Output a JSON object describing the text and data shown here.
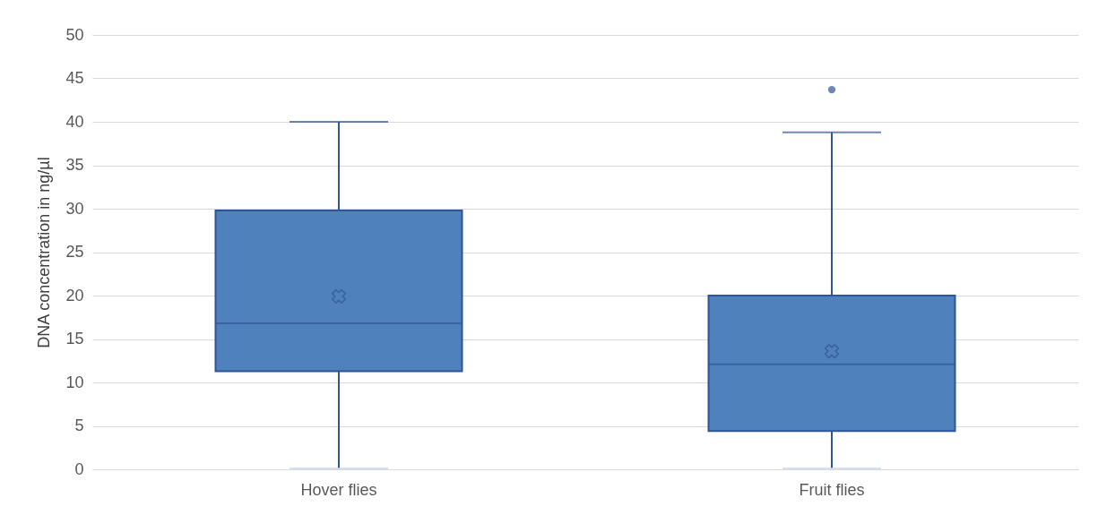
{
  "chart_data": {
    "type": "box",
    "ylabel": "DNA concentration in ng/µl",
    "categories": [
      "Hover flies",
      "Fruit flies"
    ],
    "color": "#4f81bd",
    "boxes": [
      {
        "low": 0.1,
        "q1": 11.3,
        "median": 16.8,
        "q3": 29.8,
        "high": 40,
        "mean": 19.9
      },
      {
        "low": 0.1,
        "q1": 4.4,
        "median": 12.1,
        "q3": 20,
        "high": 38.8,
        "mean": 13.6,
        "outliers": [
          43.7
        ]
      }
    ],
    "ylim": [
      0,
      50
    ],
    "yticks": [
      0,
      5,
      10,
      15,
      20,
      25,
      30,
      35,
      40,
      45,
      50
    ],
    "grid": "y"
  }
}
